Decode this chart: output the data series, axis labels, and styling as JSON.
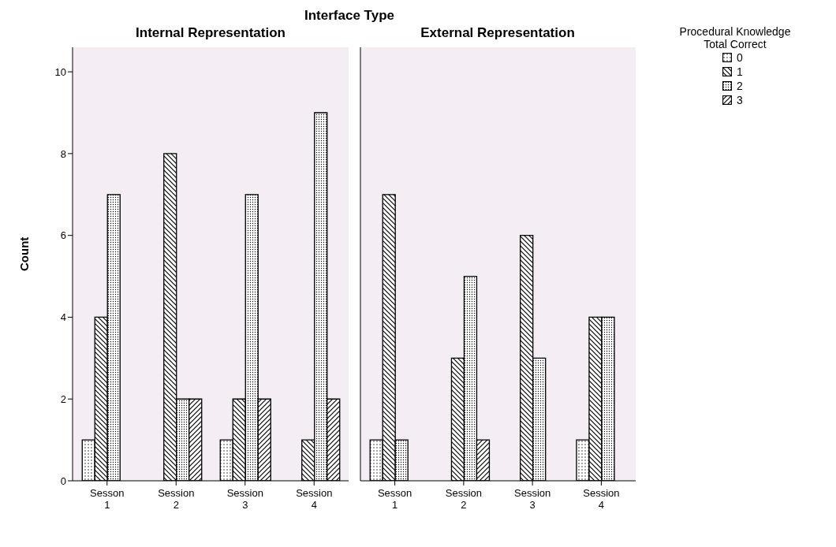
{
  "chart_data": [
    {
      "type": "bar",
      "annotations": [
        "Interface Type"
      ],
      "title": "Internal Representation",
      "ylabel": "Count",
      "categories": [
        "Sesson 1",
        "Session 2",
        "Session 3",
        "Session 4"
      ],
      "ylim": [
        0,
        10.6
      ],
      "yticks": [
        0,
        2,
        4,
        6,
        8,
        10
      ],
      "grid": false,
      "legend": false,
      "series": [
        {
          "color": "#000000",
          "values": [
            1,
            0,
            1,
            null
          ]
        },
        {
          "color": "#000000",
          "values": [
            4,
            8,
            2,
            1
          ]
        },
        {
          "color": "#000000",
          "values": [
            7,
            2,
            7,
            9
          ]
        },
        {
          "color": "#000000",
          "values": [
            0,
            2,
            2,
            2
          ]
        }
      ]
    },
    {
      "type": "bar",
      "title": "External Representation",
      "categories": [
        "Sesson 1",
        "Session 2",
        "Session 3",
        "Session 4"
      ],
      "ylim": [
        0,
        10.6
      ],
      "yticks": [
        0,
        2,
        4,
        6,
        8,
        10
      ],
      "tick_labels": "x",
      "grid": false,
      "legend": "top right",
      "legend_title": "Procedural Knowledge Total Correct",
      "series": [
        {
          "name": "0",
          "color": "#000000",
          "values": [
            1,
            null,
            null,
            1
          ]
        },
        {
          "name": "1",
          "color": "#000000",
          "values": [
            7,
            3,
            6,
            4
          ]
        },
        {
          "name": "2",
          "color": "#000000",
          "values": [
            1,
            5,
            3,
            4
          ]
        },
        {
          "name": "3",
          "color": "#000000",
          "values": [
            null,
            1,
            null,
            null
          ]
        }
      ]
    }
  ]
}
